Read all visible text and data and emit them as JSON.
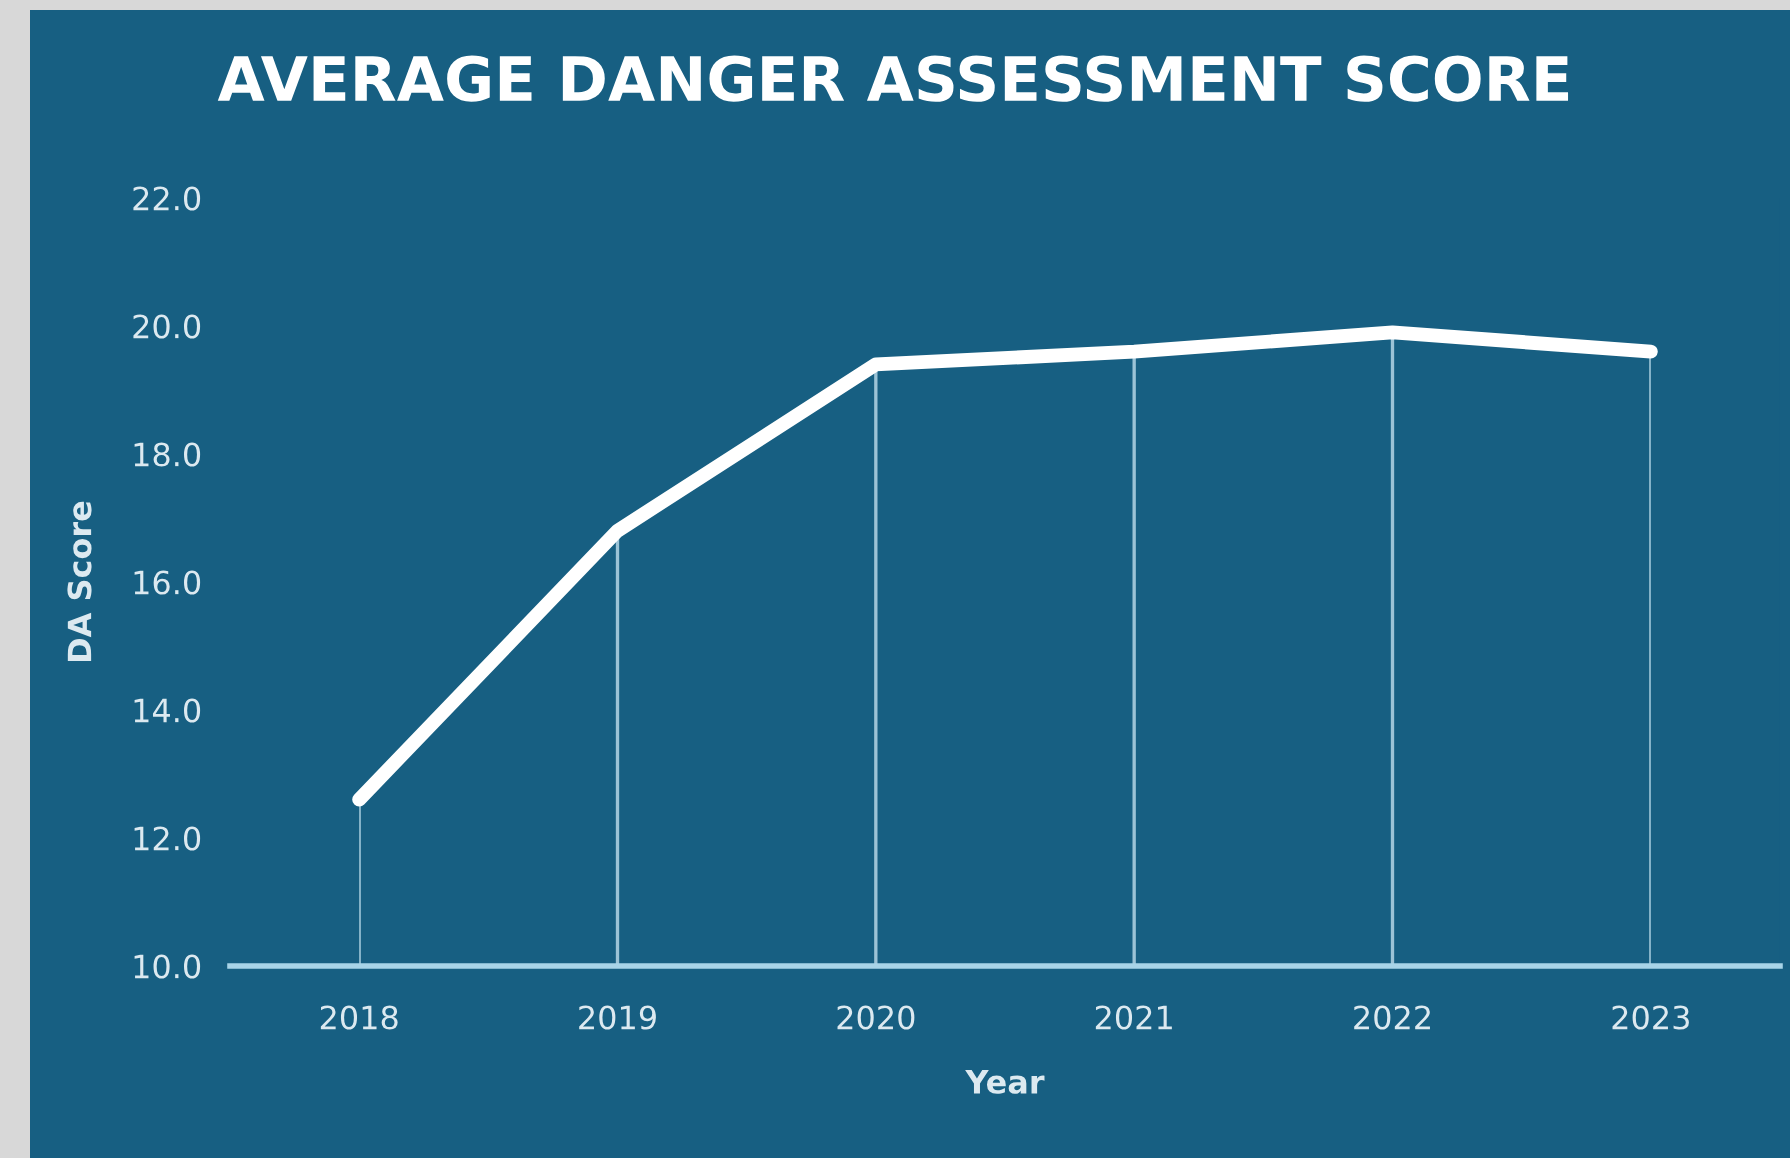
{
  "chart_data": {
    "type": "line",
    "title": "AVERAGE DANGER ASSESSMENT SCORE",
    "xlabel": "Year",
    "ylabel": "DA Score",
    "categories": [
      "2018",
      "2019",
      "2020",
      "2021",
      "2022",
      "2023"
    ],
    "series": [
      {
        "color": "#ffffff",
        "values": [
          12.6,
          16.8,
          19.4,
          19.6,
          19.9,
          19.6
        ]
      }
    ],
    "ylim": [
      10,
      22
    ],
    "yticks": [
      {
        "value": 10,
        "label": "10.0"
      },
      {
        "value": 12,
        "label": "12.0"
      },
      {
        "value": 14,
        "label": "14.0"
      },
      {
        "value": 16,
        "label": "16.0"
      },
      {
        "value": 18,
        "label": "18.0"
      },
      {
        "value": 20,
        "label": "20.0"
      },
      {
        "value": 22,
        "label": "22.0"
      }
    ],
    "grid": "x",
    "legend": false,
    "marker": "none",
    "line_style": "solid"
  }
}
